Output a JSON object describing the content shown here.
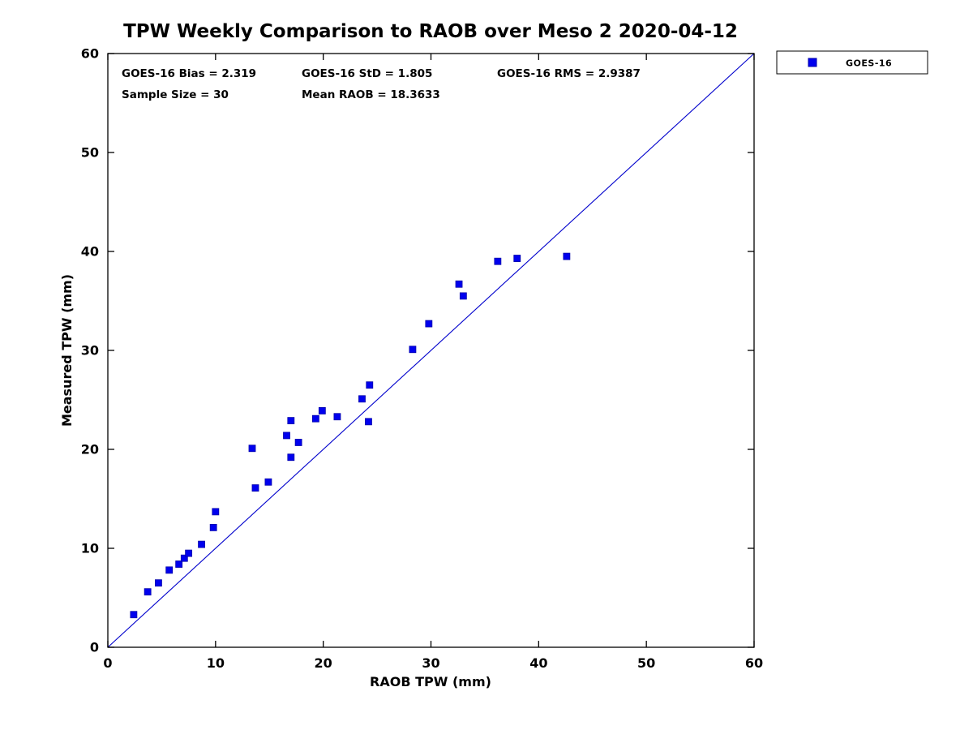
{
  "title": "TPW Weekly Comparison to RAOB over Meso 2 2020-04-12",
  "stats": {
    "bias": "GOES-16 Bias = 2.319",
    "std": "GOES-16 StD = 1.805",
    "rms": "GOES-16 RMS = 2.9387",
    "sample_size": "Sample Size = 30",
    "mean_raob": "Mean RAOB = 18.3633"
  },
  "legend": {
    "label": "GOES-16",
    "marker_color": "#0000ee"
  },
  "chart_data": {
    "type": "scatter",
    "title": "TPW Weekly Comparison to RAOB over Meso 2 2020-04-12",
    "xlabel": "RAOB TPW (mm)",
    "ylabel": "Measured TPW (mm)",
    "xlim": [
      0,
      60
    ],
    "ylim": [
      0,
      60
    ],
    "xticks": [
      0,
      10,
      20,
      30,
      40,
      50,
      60
    ],
    "yticks": [
      0,
      10,
      20,
      30,
      40,
      50,
      60
    ],
    "grid": false,
    "legend_position": "outside-top-right",
    "marker_color": "#0000ee",
    "axis_color": "#000000",
    "reference_line": {
      "from": [
        0,
        0
      ],
      "to": [
        60,
        60
      ],
      "color": "#0000cc"
    },
    "series": [
      {
        "name": "GOES-16",
        "points": [
          [
            2.4,
            3.3
          ],
          [
            3.7,
            5.6
          ],
          [
            4.7,
            6.5
          ],
          [
            5.7,
            7.8
          ],
          [
            6.6,
            8.4
          ],
          [
            7.1,
            9.0
          ],
          [
            7.5,
            9.5
          ],
          [
            8.7,
            10.4
          ],
          [
            9.8,
            12.1
          ],
          [
            10.0,
            13.7
          ],
          [
            13.4,
            20.1
          ],
          [
            13.7,
            16.1
          ],
          [
            14.9,
            16.7
          ],
          [
            16.6,
            21.4
          ],
          [
            17.0,
            19.2
          ],
          [
            17.0,
            22.9
          ],
          [
            17.7,
            20.7
          ],
          [
            19.3,
            23.1
          ],
          [
            19.9,
            23.9
          ],
          [
            21.3,
            23.3
          ],
          [
            23.6,
            25.1
          ],
          [
            24.2,
            22.8
          ],
          [
            24.3,
            26.5
          ],
          [
            28.3,
            30.1
          ],
          [
            29.8,
            32.7
          ],
          [
            32.6,
            36.7
          ],
          [
            33.0,
            35.5
          ],
          [
            36.2,
            39.0
          ],
          [
            38.0,
            39.3
          ],
          [
            42.6,
            39.5
          ]
        ]
      }
    ]
  }
}
